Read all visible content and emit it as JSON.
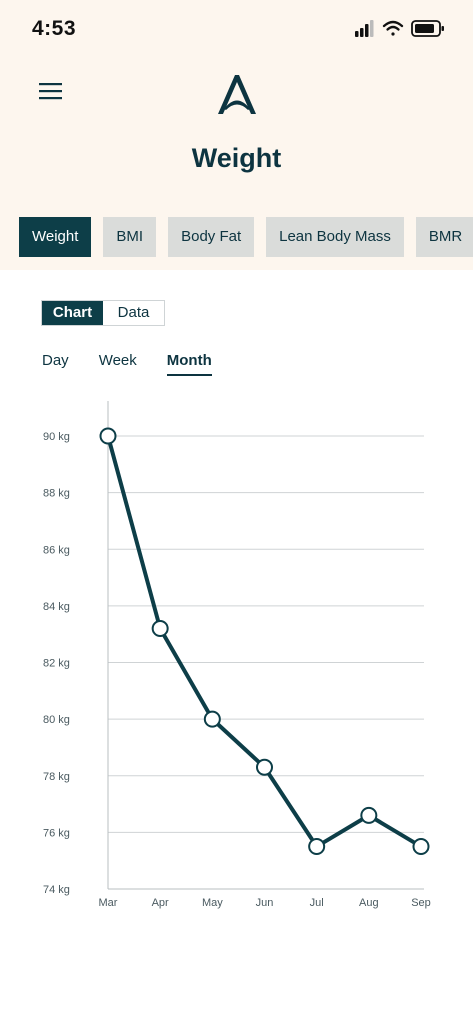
{
  "status": {
    "time": "4:53"
  },
  "header": {
    "title": "Weight"
  },
  "tabs": [
    {
      "label": "Weight",
      "active": true
    },
    {
      "label": "BMI",
      "active": false
    },
    {
      "label": "Body Fat",
      "active": false
    },
    {
      "label": "Lean Body Mass",
      "active": false
    },
    {
      "label": "BMR",
      "active": false
    }
  ],
  "view_toggle": {
    "chart_label": "Chart",
    "data_label": "Data",
    "selected": "Chart"
  },
  "periods": [
    {
      "label": "Day",
      "active": false
    },
    {
      "label": "Week",
      "active": false
    },
    {
      "label": "Month",
      "active": true
    }
  ],
  "colors": {
    "accent": "#0d3e48",
    "header_bg": "#fdf6ee",
    "tab_bg": "#dadcda"
  },
  "chart_data": {
    "type": "line",
    "categories": [
      "Mar",
      "Apr",
      "May",
      "Jun",
      "Jul",
      "Aug",
      "Sep"
    ],
    "series": [
      {
        "values": [
          90.0,
          83.2,
          80.0,
          78.3,
          75.5,
          76.6,
          75.5
        ]
      }
    ],
    "y_ticks": [
      90,
      88,
      86,
      84,
      82,
      80,
      78,
      76,
      74
    ],
    "y_tick_labels": [
      "90 kg",
      "88 kg",
      "86 kg",
      "84 kg",
      "82 kg",
      "80 kg",
      "78 kg",
      "76 kg",
      "74 kg"
    ],
    "ylim": [
      74,
      90
    ],
    "grid": true,
    "title": "",
    "xlabel": "",
    "ylabel": ""
  }
}
